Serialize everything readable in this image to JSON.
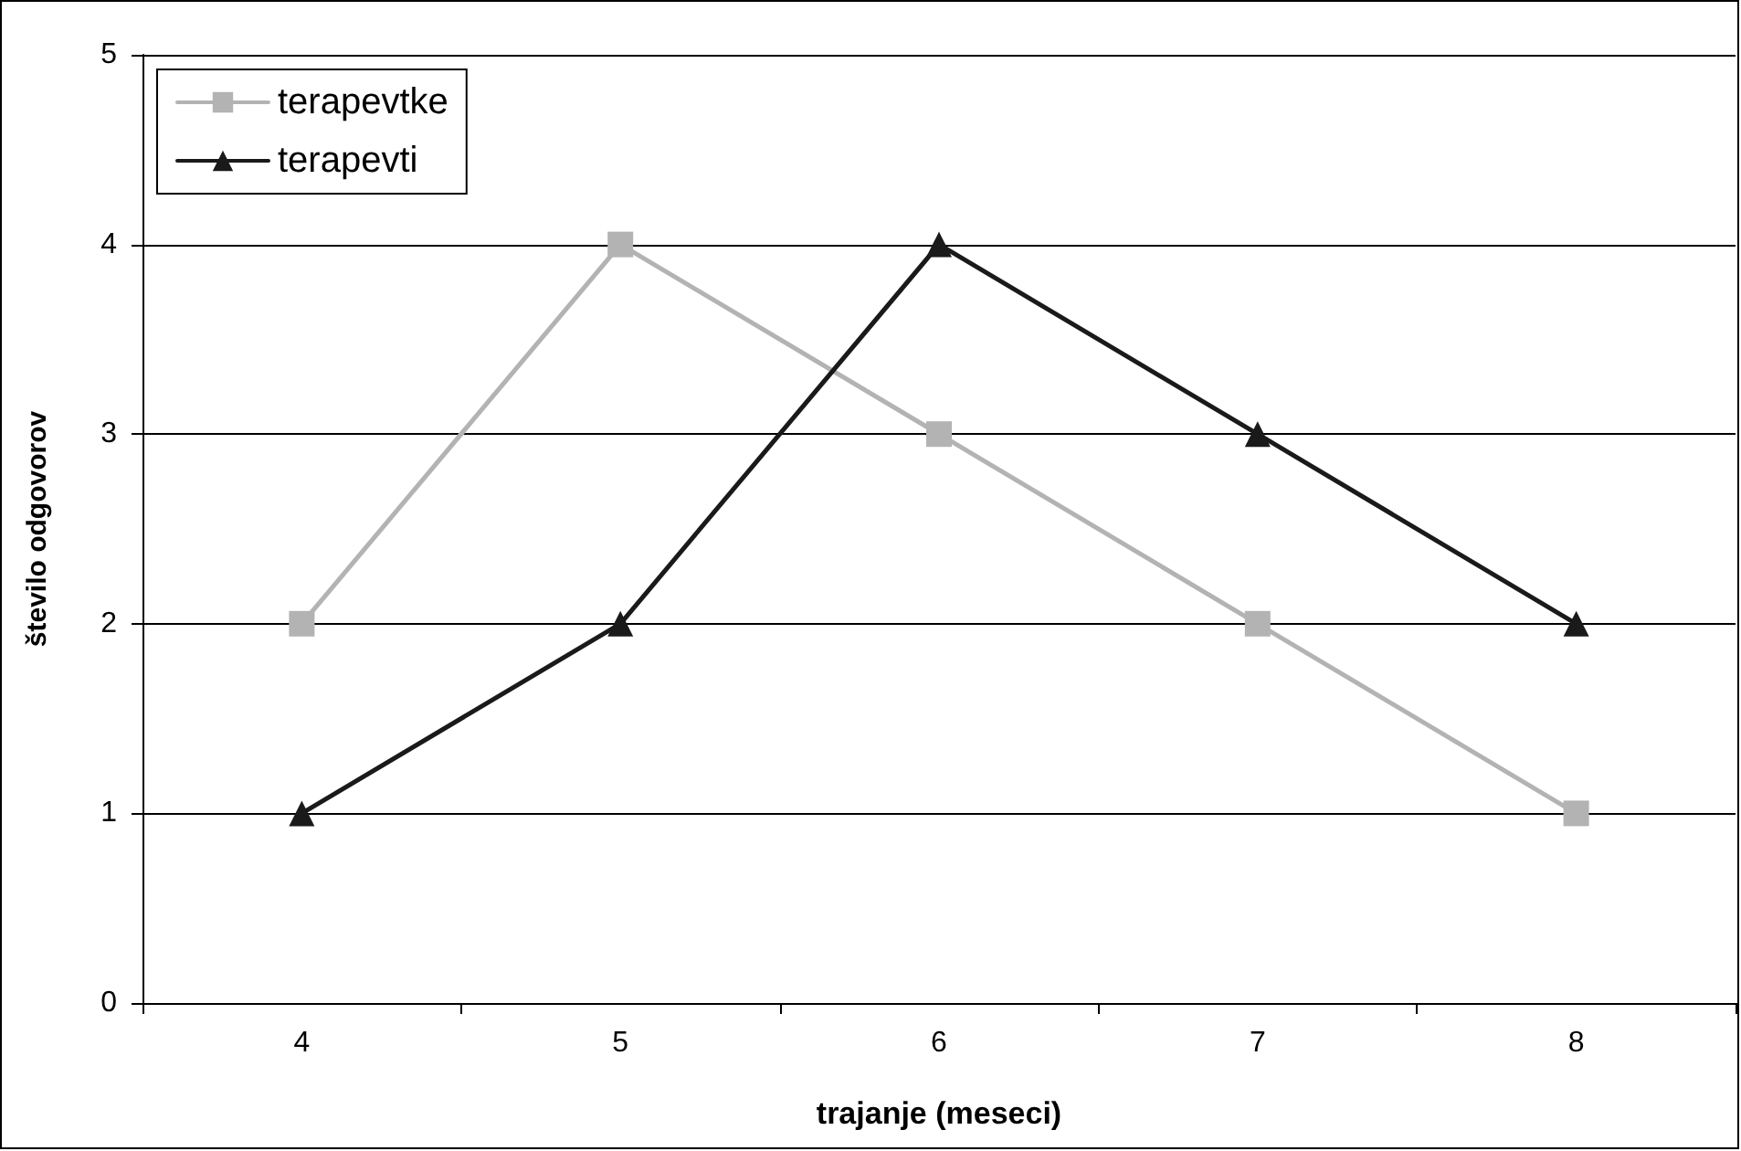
{
  "chart_data": {
    "type": "line",
    "xlabel": "trajanje (meseci)",
    "ylabel": "število odgovorov",
    "categories": [
      "4",
      "5",
      "6",
      "7",
      "8"
    ],
    "series": [
      {
        "name": "terapevtke",
        "color": "#b3b3b3",
        "marker": "square",
        "values": [
          2,
          4,
          3,
          2,
          1
        ]
      },
      {
        "name": "terapevti",
        "color": "#1a1a1a",
        "marker": "triangle",
        "values": [
          1,
          2,
          4,
          3,
          2
        ]
      }
    ],
    "ylim": [
      0,
      5
    ],
    "yticks": [
      0,
      1,
      2,
      3,
      4,
      5
    ],
    "grid": "y",
    "legend": "top left",
    "line_style": "solid"
  }
}
